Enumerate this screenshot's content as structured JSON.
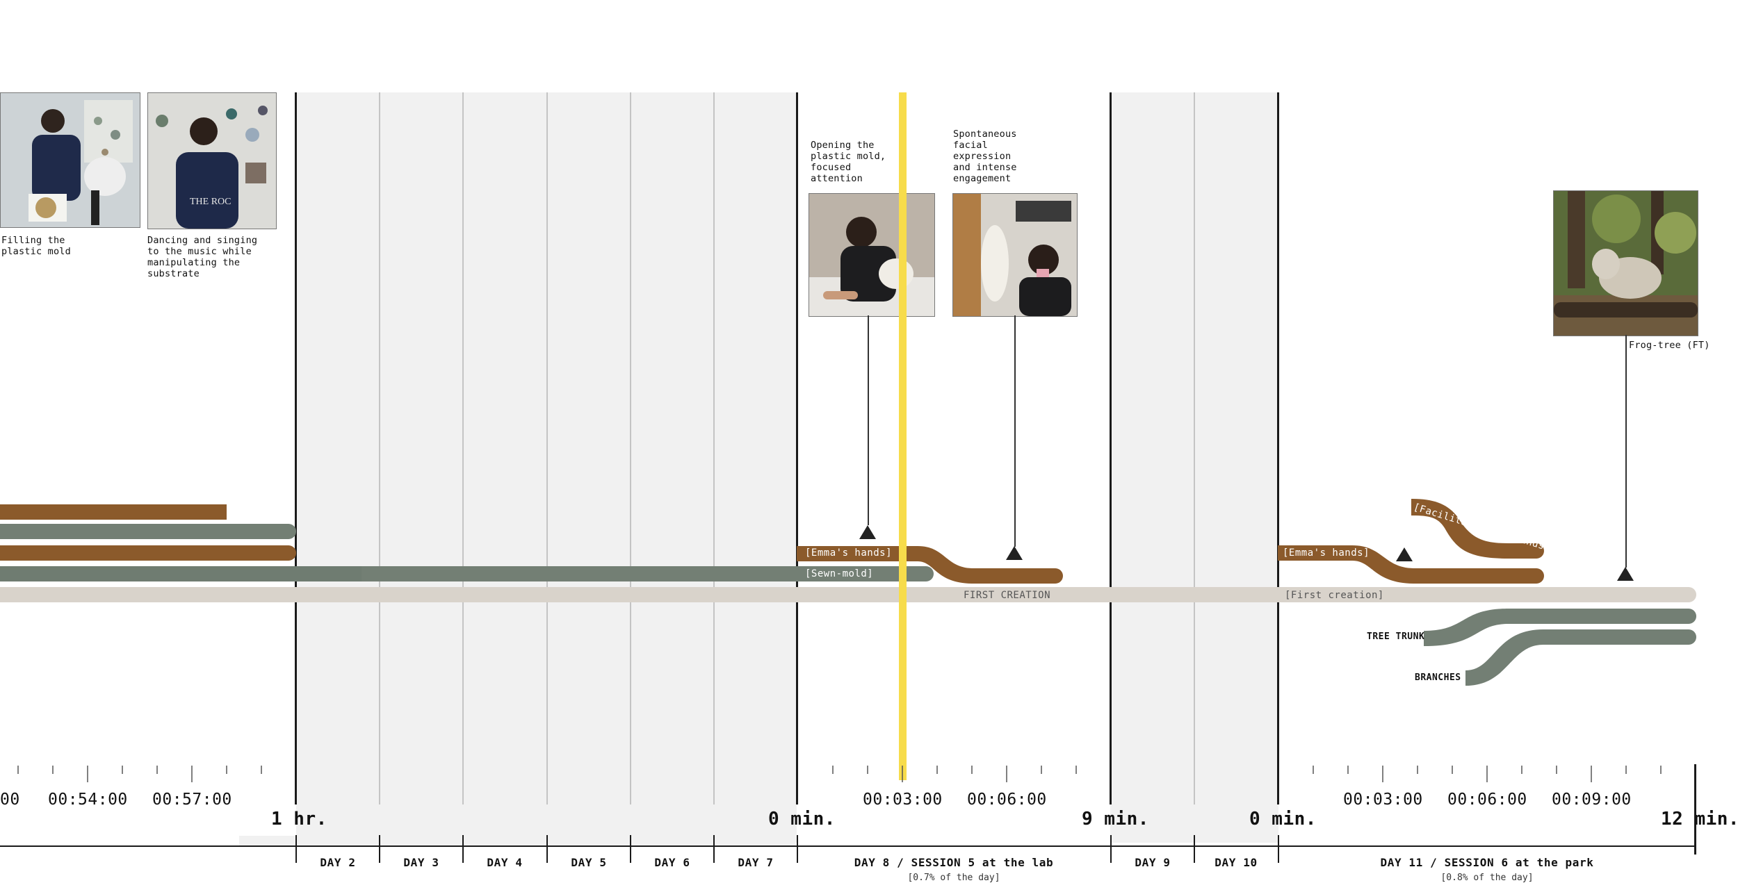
{
  "photos": [
    {
      "caption": "Filling the\nplastic mold"
    },
    {
      "caption": "Dancing and singing\nto the music while\nmanipulating the\nsubstrate"
    },
    {
      "caption": "Opening the\nplastic mold,\nfocused\nattention"
    },
    {
      "caption": "Spontaneous\nfacial\nexpression\nand intense\nengagement"
    },
    {
      "caption": "Frog-tree (FT)"
    }
  ],
  "track_labels": {
    "emma_hands_1": "[Emma's hands]",
    "sewn_mold": "[Sewn-mold]",
    "first_creation_caps": "FIRST CREATION",
    "emma_hands_2": "[Emma's hands]",
    "facilitator_hands": "[Facilitator's 3 hands]",
    "first_creation_bracket": "[First creation]",
    "tree_trunk": "TREE TRUNK",
    "branches": "BRANCHES"
  },
  "time_labels": [
    "00",
    "00:54:00",
    "00:57:00",
    "00:03:00",
    "00:06:00",
    "00:03:00",
    "00:06:00",
    "00:09:00"
  ],
  "boundary_labels": [
    "1 hr.",
    "0 min.",
    "9 min.",
    "0 min.",
    "12 min."
  ],
  "days": [
    "DAY 2",
    "DAY 3",
    "DAY 4",
    "DAY 5",
    "DAY 6",
    "DAY 7",
    "DAY 8 / SESSION 5 at the lab",
    "DAY 9",
    "DAY 10",
    "DAY 11 / SESSION 6 at the park"
  ],
  "day_subtitles": [
    "[0.7% of the day]",
    "[0.8% of the day]"
  ],
  "colors": {
    "brown": "#8b5a2b",
    "green": "#737f74",
    "beige": "#d9d3cb",
    "highlight": "#f7dc4b",
    "band": "#f1f1f1"
  }
}
